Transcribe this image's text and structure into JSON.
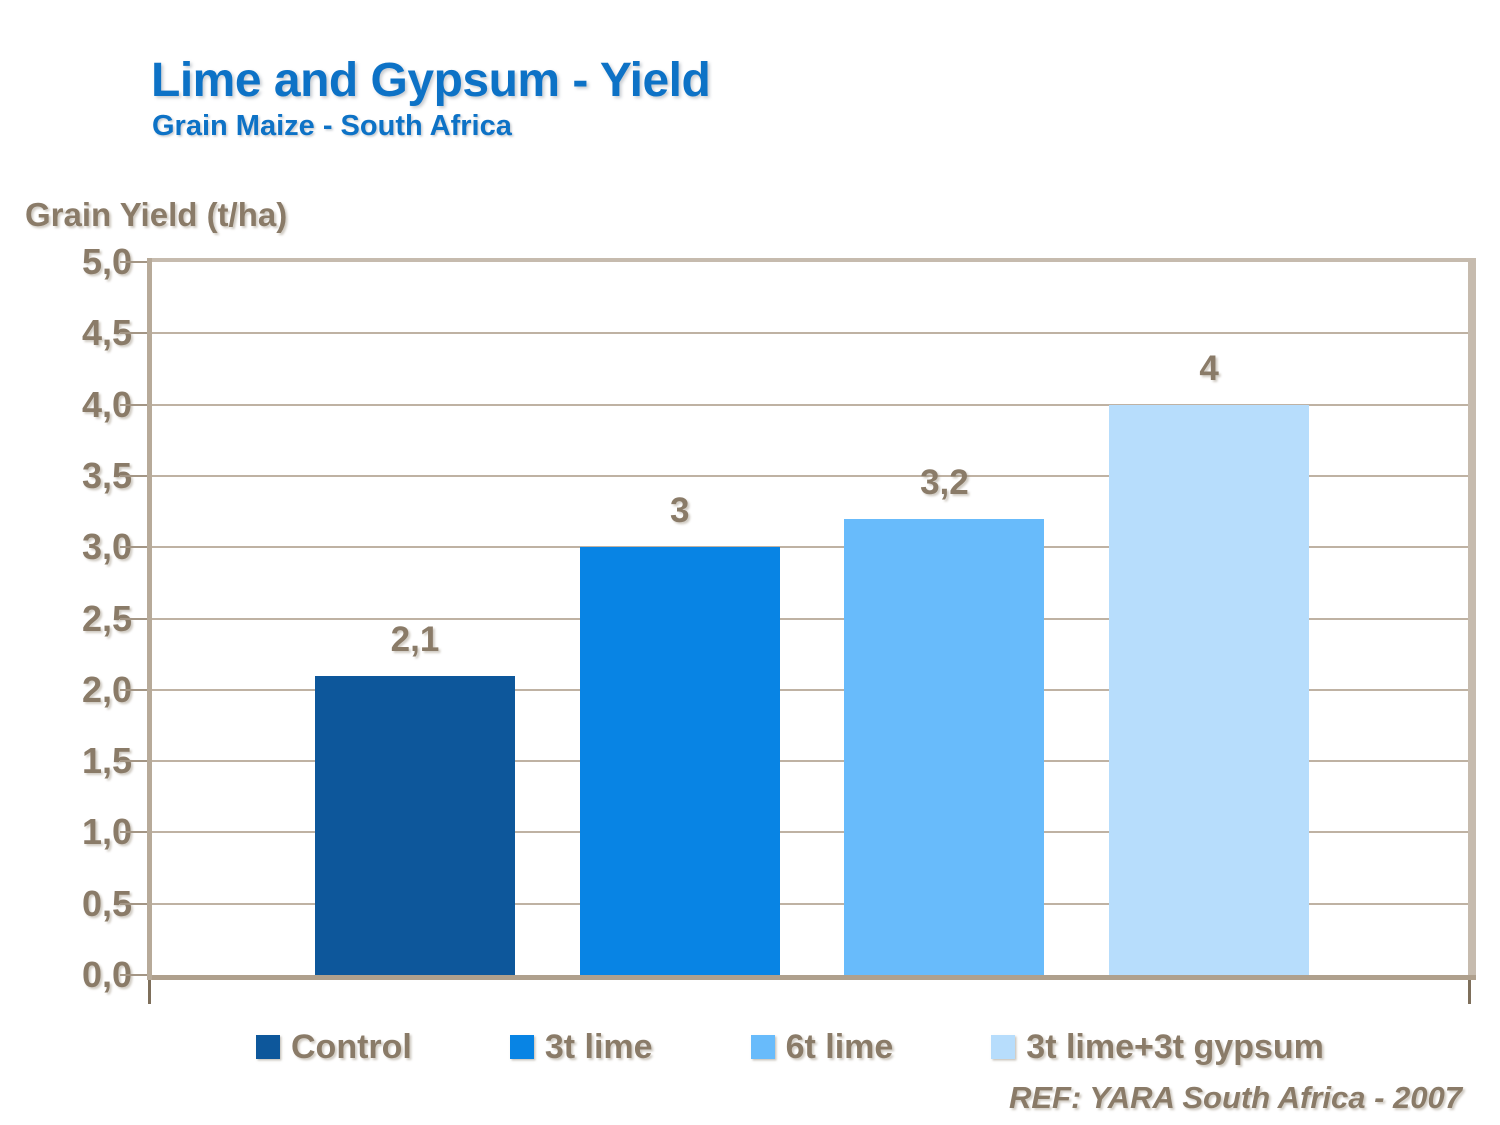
{
  "header": {
    "title": "Lime and Gypsum - Yield",
    "subtitle": "Grain Maize - South Africa"
  },
  "y_axis_title": "Grain Yield (t/ha)",
  "reference": "REF: YARA South Africa - 2007",
  "colors": {
    "title_blue": "#0D72C6",
    "text_brown": "#8A7B68",
    "gridline": "#BFB2A3",
    "plot_border": "#B7AA99"
  },
  "chart_data": {
    "type": "bar",
    "title": "Lime and Gypsum - Yield",
    "subtitle": "Grain Maize - South Africa",
    "ylabel": "Grain Yield (t/ha)",
    "xlabel": "",
    "categories": [
      "Control",
      "3t lime",
      "6t lime",
      "3t lime+3t gypsum"
    ],
    "values": [
      2.1,
      3,
      3.2,
      4
    ],
    "value_labels": [
      "2,1",
      "3",
      "3,2",
      "4"
    ],
    "bar_colors": [
      "#0D579B",
      "#0884E4",
      "#68BBFB",
      "#B7DDFC"
    ],
    "ylim": [
      0,
      5
    ],
    "ytick_step": 0.5,
    "ytick_labels": [
      "5,0",
      "4,5",
      "4,0",
      "3,5",
      "3,0",
      "2,5",
      "2,0",
      "1,5",
      "1,0",
      "0,5",
      "0,0"
    ],
    "decimal_separator": ",",
    "grid": true,
    "legend_position": "bottom",
    "legend": [
      {
        "label": "Control",
        "color": "#0D579B"
      },
      {
        "label": "3t lime",
        "color": "#0884E4"
      },
      {
        "label": "6t lime",
        "color": "#68BBFB"
      },
      {
        "label": "3t lime+3t gypsum",
        "color": "#B7DDFC"
      }
    ],
    "reference": "REF: YARA South Africa - 2007"
  }
}
